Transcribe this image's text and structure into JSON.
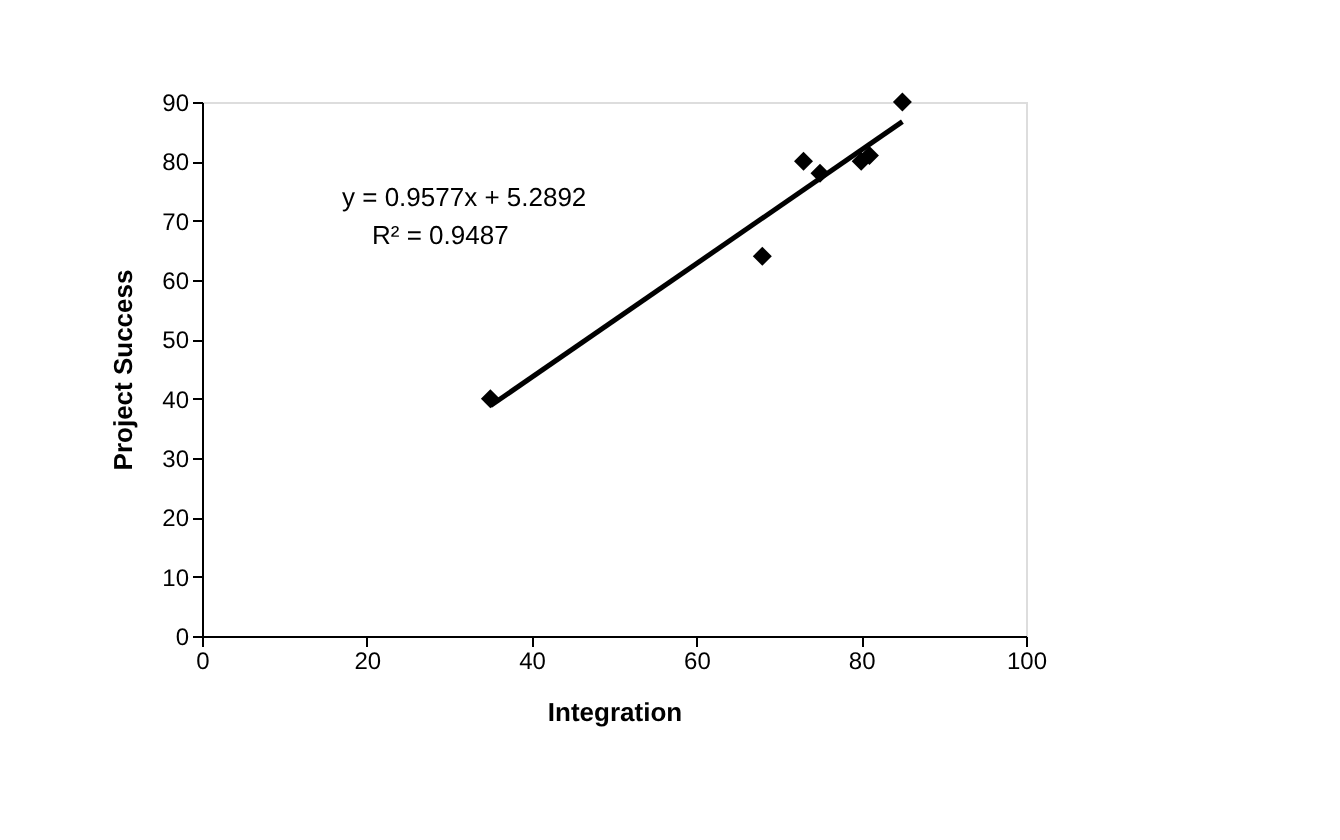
{
  "chart_data": {
    "type": "scatter",
    "xlabel": "Integration",
    "ylabel": "Project Success",
    "xlim": [
      0,
      100
    ],
    "xticks": [
      0,
      20,
      40,
      60,
      80,
      100
    ],
    "ylim": [
      0,
      90
    ],
    "yticks": [
      0,
      10,
      20,
      30,
      40,
      50,
      60,
      70,
      80,
      90
    ],
    "grid": false,
    "marker": "diamond",
    "series": [
      {
        "color": "#000000",
        "x": [
          35,
          68,
          73,
          75,
          80,
          81,
          85
        ],
        "values": [
          40,
          64,
          80,
          78,
          80,
          81,
          90
        ]
      },
      {
        "type": "line",
        "color": "#000000",
        "x": [
          35,
          85
        ],
        "values": [
          38.8,
          86.7
        ],
        "line_style": "solid",
        "marker": "none"
      }
    ],
    "annotations": [
      "y = 0.9577x + 5.2892",
      "R² = 0.9487"
    ]
  }
}
